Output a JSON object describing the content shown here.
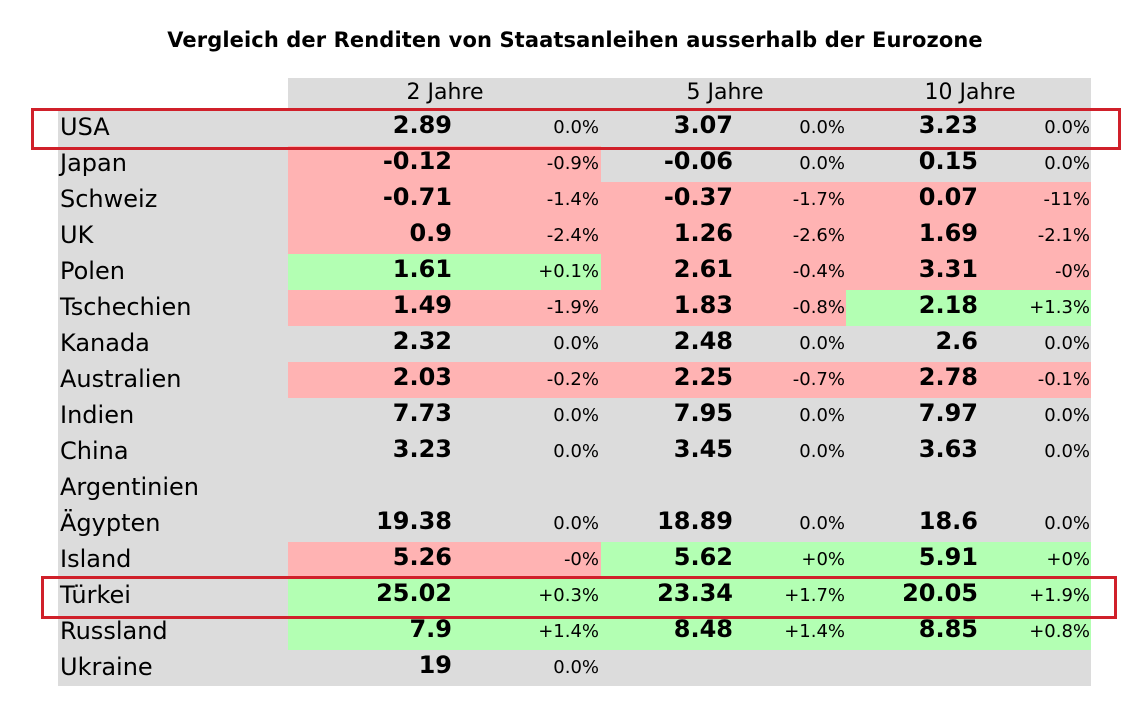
{
  "chart_data": {
    "type": "table",
    "title": "Vergleich der Renditen von Staatsanleihen ausserhalb der Eurozone",
    "columns": [
      "2 Jahre",
      "5 Jahre",
      "10 Jahre"
    ],
    "colors": {
      "up": "#b3ffb3",
      "down": "#ffb3b3",
      "neutral": "#dcdcdc",
      "highlight": "#d0202a"
    },
    "highlighted_rows": [
      "USA",
      "Türkei"
    ],
    "rows": [
      {
        "country": "USA",
        "cells": [
          {
            "value": "2.89",
            "change": "0.0%",
            "trend": "neutral"
          },
          {
            "value": "3.07",
            "change": "0.0%",
            "trend": "neutral"
          },
          {
            "value": "3.23",
            "change": "0.0%",
            "trend": "neutral"
          }
        ]
      },
      {
        "country": "Japan",
        "cells": [
          {
            "value": "-0.12",
            "change": "-0.9%",
            "trend": "down"
          },
          {
            "value": "-0.06",
            "change": "0.0%",
            "trend": "neutral"
          },
          {
            "value": "0.15",
            "change": "0.0%",
            "trend": "neutral"
          }
        ]
      },
      {
        "country": "Schweiz",
        "cells": [
          {
            "value": "-0.71",
            "change": "-1.4%",
            "trend": "down"
          },
          {
            "value": "-0.37",
            "change": "-1.7%",
            "trend": "down"
          },
          {
            "value": "0.07",
            "change": "-11%",
            "trend": "down"
          }
        ]
      },
      {
        "country": "UK",
        "cells": [
          {
            "value": "0.9",
            "change": "-2.4%",
            "trend": "down"
          },
          {
            "value": "1.26",
            "change": "-2.6%",
            "trend": "down"
          },
          {
            "value": "1.69",
            "change": "-2.1%",
            "trend": "down"
          }
        ]
      },
      {
        "country": "Polen",
        "cells": [
          {
            "value": "1.61",
            "change": "+0.1%",
            "trend": "up"
          },
          {
            "value": "2.61",
            "change": "-0.4%",
            "trend": "down"
          },
          {
            "value": "3.31",
            "change": "-0%",
            "trend": "down"
          }
        ]
      },
      {
        "country": "Tschechien",
        "cells": [
          {
            "value": "1.49",
            "change": "-1.9%",
            "trend": "down"
          },
          {
            "value": "1.83",
            "change": "-0.8%",
            "trend": "down"
          },
          {
            "value": "2.18",
            "change": "+1.3%",
            "trend": "up"
          }
        ]
      },
      {
        "country": "Kanada",
        "cells": [
          {
            "value": "2.32",
            "change": "0.0%",
            "trend": "neutral"
          },
          {
            "value": "2.48",
            "change": "0.0%",
            "trend": "neutral"
          },
          {
            "value": "2.6",
            "change": "0.0%",
            "trend": "neutral"
          }
        ]
      },
      {
        "country": "Australien",
        "cells": [
          {
            "value": "2.03",
            "change": "-0.2%",
            "trend": "down"
          },
          {
            "value": "2.25",
            "change": "-0.7%",
            "trend": "down"
          },
          {
            "value": "2.78",
            "change": "-0.1%",
            "trend": "down"
          }
        ]
      },
      {
        "country": "Indien",
        "cells": [
          {
            "value": "7.73",
            "change": "0.0%",
            "trend": "neutral"
          },
          {
            "value": "7.95",
            "change": "0.0%",
            "trend": "neutral"
          },
          {
            "value": "7.97",
            "change": "0.0%",
            "trend": "neutral"
          }
        ]
      },
      {
        "country": "China",
        "cells": [
          {
            "value": "3.23",
            "change": "0.0%",
            "trend": "neutral"
          },
          {
            "value": "3.45",
            "change": "0.0%",
            "trend": "neutral"
          },
          {
            "value": "3.63",
            "change": "0.0%",
            "trend": "neutral"
          }
        ]
      },
      {
        "country": "Argentinien",
        "cells": [
          {
            "value": "",
            "change": "",
            "trend": "neutral"
          },
          {
            "value": "",
            "change": "",
            "trend": "neutral"
          },
          {
            "value": "",
            "change": "",
            "trend": "neutral"
          }
        ]
      },
      {
        "country": "Ägypten",
        "cells": [
          {
            "value": "19.38",
            "change": "0.0%",
            "trend": "neutral"
          },
          {
            "value": "18.89",
            "change": "0.0%",
            "trend": "neutral"
          },
          {
            "value": "18.6",
            "change": "0.0%",
            "trend": "neutral"
          }
        ]
      },
      {
        "country": "Island",
        "cells": [
          {
            "value": "5.26",
            "change": "-0%",
            "trend": "down"
          },
          {
            "value": "5.62",
            "change": "+0%",
            "trend": "up"
          },
          {
            "value": "5.91",
            "change": "+0%",
            "trend": "up"
          }
        ]
      },
      {
        "country": "Türkei",
        "cells": [
          {
            "value": "25.02",
            "change": "+0.3%",
            "trend": "up"
          },
          {
            "value": "23.34",
            "change": "+1.7%",
            "trend": "up"
          },
          {
            "value": "20.05",
            "change": "+1.9%",
            "trend": "up"
          }
        ]
      },
      {
        "country": "Russland",
        "cells": [
          {
            "value": "7.9",
            "change": "+1.4%",
            "trend": "up"
          },
          {
            "value": "8.48",
            "change": "+1.4%",
            "trend": "up"
          },
          {
            "value": "8.85",
            "change": "+0.8%",
            "trend": "up"
          }
        ]
      },
      {
        "country": "Ukraine",
        "cells": [
          {
            "value": "19",
            "change": "0.0%",
            "trend": "neutral"
          },
          {
            "value": "",
            "change": "",
            "trend": "neutral"
          },
          {
            "value": "",
            "change": "",
            "trend": "neutral"
          }
        ]
      }
    ]
  }
}
